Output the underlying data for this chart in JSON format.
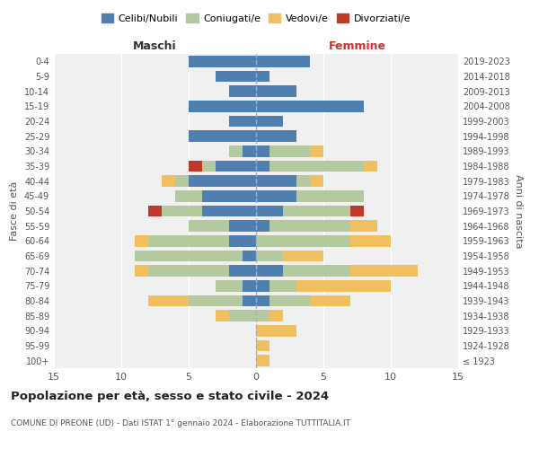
{
  "age_groups": [
    "100+",
    "95-99",
    "90-94",
    "85-89",
    "80-84",
    "75-79",
    "70-74",
    "65-69",
    "60-64",
    "55-59",
    "50-54",
    "45-49",
    "40-44",
    "35-39",
    "30-34",
    "25-29",
    "20-24",
    "15-19",
    "10-14",
    "5-9",
    "0-4"
  ],
  "birth_years": [
    "≤ 1923",
    "1924-1928",
    "1929-1933",
    "1934-1938",
    "1939-1943",
    "1944-1948",
    "1949-1953",
    "1954-1958",
    "1959-1963",
    "1964-1968",
    "1969-1973",
    "1974-1978",
    "1979-1983",
    "1984-1988",
    "1989-1993",
    "1994-1998",
    "1999-2003",
    "2004-2008",
    "2009-2013",
    "2014-2018",
    "2019-2023"
  ],
  "maschi": {
    "celibi": [
      0,
      0,
      0,
      0,
      1,
      1,
      2,
      1,
      2,
      2,
      4,
      4,
      5,
      3,
      1,
      5,
      2,
      5,
      2,
      3,
      5
    ],
    "coniugati": [
      0,
      0,
      0,
      2,
      4,
      2,
      6,
      8,
      6,
      3,
      3,
      2,
      1,
      1,
      1,
      0,
      0,
      0,
      0,
      0,
      0
    ],
    "vedovi": [
      0,
      0,
      0,
      1,
      3,
      0,
      1,
      0,
      1,
      0,
      0,
      0,
      1,
      0,
      0,
      0,
      0,
      0,
      0,
      0,
      0
    ],
    "divorziati": [
      0,
      0,
      0,
      0,
      0,
      0,
      0,
      0,
      0,
      0,
      1,
      0,
      0,
      1,
      0,
      0,
      0,
      0,
      0,
      0,
      0
    ]
  },
  "femmine": {
    "nubili": [
      0,
      0,
      0,
      0,
      1,
      1,
      2,
      0,
      0,
      1,
      2,
      3,
      3,
      1,
      1,
      3,
      2,
      8,
      3,
      1,
      4
    ],
    "coniugate": [
      0,
      0,
      0,
      1,
      3,
      2,
      5,
      2,
      7,
      6,
      5,
      5,
      1,
      7,
      3,
      0,
      0,
      0,
      0,
      0,
      0
    ],
    "vedove": [
      1,
      1,
      3,
      1,
      3,
      7,
      5,
      3,
      3,
      2,
      0,
      0,
      1,
      1,
      1,
      0,
      0,
      0,
      0,
      0,
      0
    ],
    "divorziate": [
      0,
      0,
      0,
      0,
      0,
      0,
      0,
      0,
      0,
      0,
      1,
      0,
      0,
      0,
      0,
      0,
      0,
      0,
      0,
      0,
      0
    ]
  },
  "colors": {
    "celibi": "#4e7fae",
    "coniugati": "#b5c9a1",
    "vedovi": "#f0c060",
    "divorziati": "#c0392b"
  },
  "title": "Popolazione per età, sesso e stato civile - 2024",
  "subtitle": "COMUNE DI PREONE (UD) - Dati ISTAT 1° gennaio 2024 - Elaborazione TUTTITALIA.IT",
  "xlabel_left": "Maschi",
  "xlabel_right": "Femmine",
  "ylabel_left": "Fasce di età",
  "ylabel_right": "Anni di nascita",
  "xlim": 15,
  "background_color": "#f0f0f0",
  "legend_labels": [
    "Celibi/Nubili",
    "Coniugati/e",
    "Vedovi/e",
    "Divorziati/e"
  ]
}
